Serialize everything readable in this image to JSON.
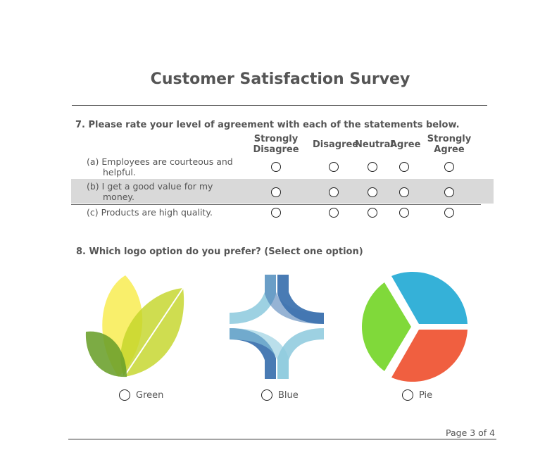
{
  "survey_title": "Customer Satisfaction Survey",
  "q7": {
    "title": "7. Please rate your level of agreement with each of the statements below.",
    "columns": [
      {
        "line1": "Strongly",
        "line2": "Disagree"
      },
      {
        "line1": "Disagree",
        "line2": ""
      },
      {
        "line1": "Neutral",
        "line2": ""
      },
      {
        "line1": "Agree",
        "line2": ""
      },
      {
        "line1": "Strongly",
        "line2": "Agree"
      }
    ],
    "rows": [
      {
        "line1": "(a) Employees are courteous and",
        "line2": "helpful."
      },
      {
        "line1": "(b) I get a good value for my",
        "line2": "money."
      },
      {
        "line1": "(c) Products are high quality.",
        "line2": ""
      }
    ]
  },
  "q8": {
    "title": "8. Which logo option do you prefer? (Select one option)",
    "options": [
      {
        "label": "Green",
        "icon": "green-leaves-logo"
      },
      {
        "label": "Blue",
        "icon": "blue-interlace-logo"
      },
      {
        "label": "Pie",
        "icon": "pie-logo"
      }
    ]
  },
  "footer": {
    "page": "Page 3 of 4"
  },
  "colors": {
    "text": "#555555",
    "row_highlight": "#d9d9d9",
    "pie_blue": "#35b1d8",
    "pie_red": "#f05f40",
    "pie_green": "#80d93a"
  }
}
